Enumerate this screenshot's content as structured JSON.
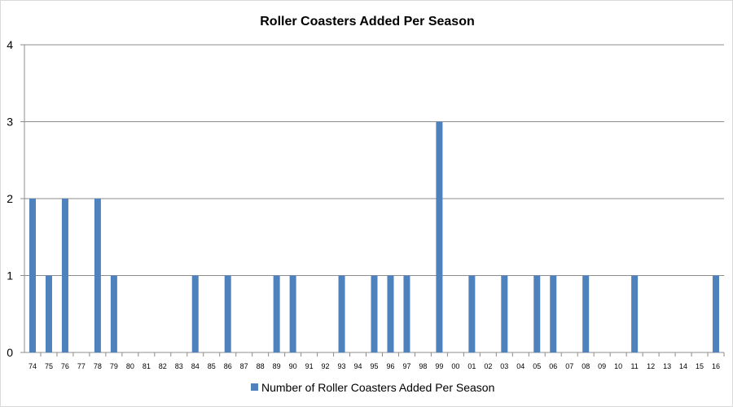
{
  "chart_data": {
    "type": "bar",
    "title": "Roller Coasters Added Per Season",
    "xlabel": "",
    "ylabel": "",
    "ylim": [
      0,
      4
    ],
    "yticks": [
      0,
      1,
      2,
      3,
      4
    ],
    "grid": true,
    "legend_position": "bottom",
    "categories": [
      "74",
      "75",
      "76",
      "77",
      "78",
      "79",
      "80",
      "81",
      "82",
      "83",
      "84",
      "85",
      "86",
      "87",
      "88",
      "89",
      "90",
      "91",
      "92",
      "93",
      "94",
      "95",
      "96",
      "97",
      "98",
      "99",
      "00",
      "01",
      "02",
      "03",
      "04",
      "05",
      "06",
      "07",
      "08",
      "09",
      "10",
      "11",
      "12",
      "13",
      "14",
      "15",
      "16"
    ],
    "series": [
      {
        "name": "Number of Roller Coasters Added Per Season",
        "color": "#4f81bd",
        "values": [
          2,
          1,
          2,
          0,
          2,
          1,
          0,
          0,
          0,
          0,
          1,
          0,
          1,
          0,
          0,
          1,
          1,
          0,
          0,
          1,
          0,
          1,
          1,
          1,
          0,
          3,
          0,
          1,
          0,
          1,
          0,
          1,
          1,
          0,
          1,
          0,
          0,
          1,
          0,
          0,
          0,
          0,
          1
        ]
      }
    ]
  }
}
